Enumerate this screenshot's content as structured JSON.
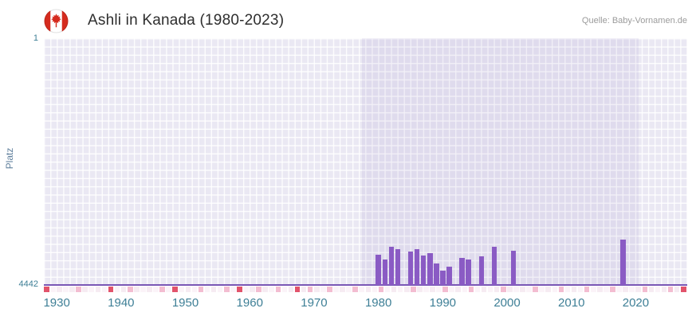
{
  "header": {
    "title": "Ashli in Kanada (1980-2023)",
    "source": "Quelle: Baby-Vornamen.de",
    "flag_icon": "canada-flag-icon"
  },
  "chart_data": {
    "type": "bar",
    "title": "Ashli in Kanada (1980-2023)",
    "xlabel": "",
    "ylabel": "Platz",
    "y_axis": {
      "min": 1,
      "max": 4442,
      "top_label": "1",
      "bottom_label": "4442",
      "inverted": true
    },
    "x_axis": {
      "min": 1928,
      "max": 2028,
      "ticks": [
        1930,
        1940,
        1950,
        1960,
        1970,
        1980,
        1990,
        2000,
        2010,
        2020
      ]
    },
    "highlight_band": {
      "from": 1977.5,
      "to": 2020.5
    },
    "bars": [
      {
        "year": 1980,
        "rank": 3900
      },
      {
        "year": 1981,
        "rank": 3980
      },
      {
        "year": 1982,
        "rank": 3760
      },
      {
        "year": 1983,
        "rank": 3800
      },
      {
        "year": 1985,
        "rank": 3840
      },
      {
        "year": 1986,
        "rank": 3790
      },
      {
        "year": 1987,
        "rank": 3905
      },
      {
        "year": 1988,
        "rank": 3870
      },
      {
        "year": 1989,
        "rank": 4060
      },
      {
        "year": 1990,
        "rank": 4180
      },
      {
        "year": 1991,
        "rank": 4110
      },
      {
        "year": 1993,
        "rank": 3950
      },
      {
        "year": 1994,
        "rank": 3985
      },
      {
        "year": 1996,
        "rank": 3920
      },
      {
        "year": 1998,
        "rank": 3755
      },
      {
        "year": 2001,
        "rank": 3820
      },
      {
        "year": 2018,
        "rank": 3630
      }
    ],
    "bottom_strip": {
      "red_years": [
        1928,
        1938,
        1948,
        1958,
        1967,
        2027
      ],
      "pink_years": [
        1933,
        1941,
        1946,
        1952,
        1956,
        1961,
        1964,
        1969,
        1972,
        1976,
        1980,
        1985,
        1990,
        1994,
        1999,
        2004,
        2008,
        2012,
        2016,
        2021,
        2025
      ]
    },
    "colors": {
      "bar": "#8a5bc4",
      "baseline": "#7a57b5",
      "plot_bg": "#eae8f3",
      "band": "rgba(106,79,169,0.08)",
      "tick": "#3e7f96",
      "axistitle": "#5f7f9c",
      "red": "#e2536b",
      "pink": "#f3bdd1"
    },
    "legend": null,
    "grid": true
  }
}
